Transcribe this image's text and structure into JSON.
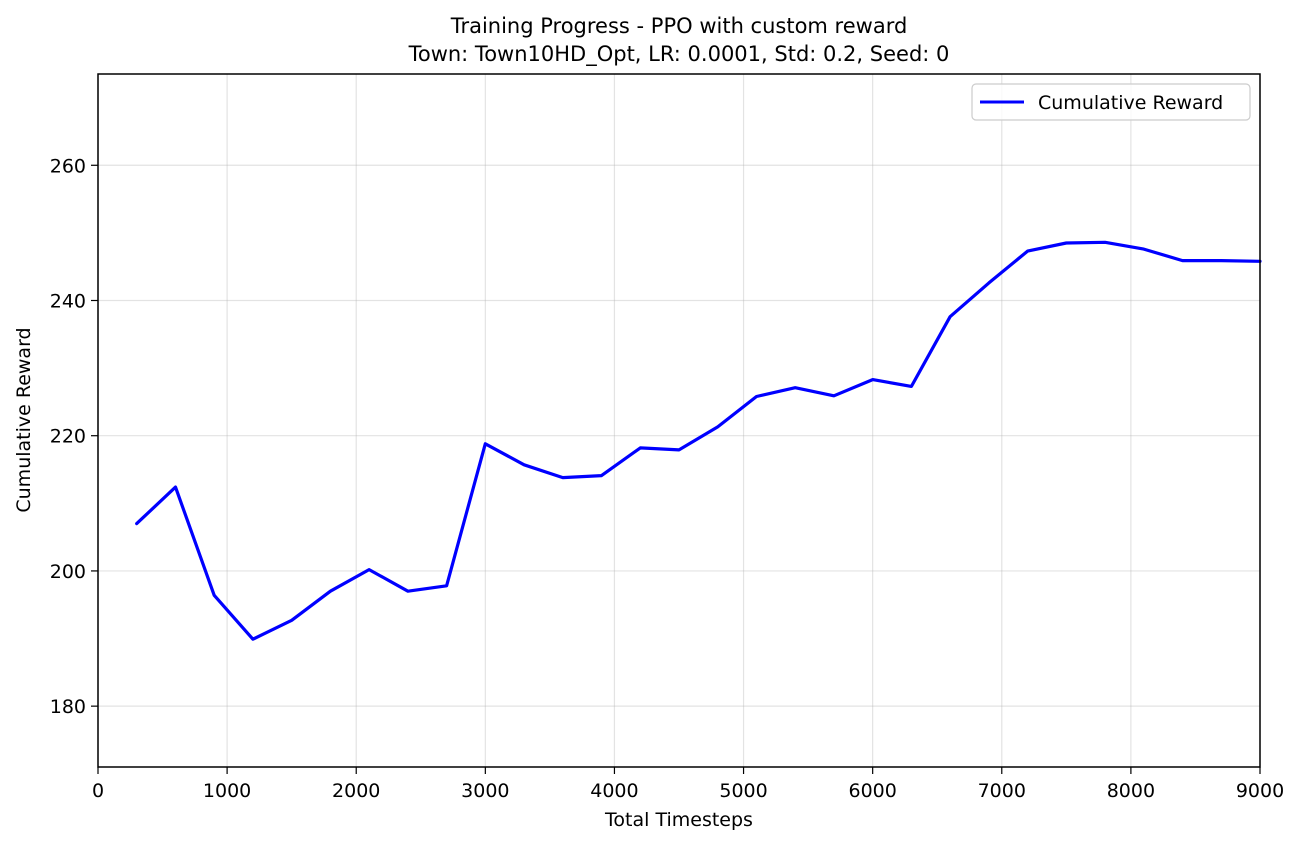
{
  "chart_data": {
    "type": "line",
    "title": "Training Progress - PPO with custom reward",
    "subtitle": "Town: Town10HD_Opt, LR: 0.0001, Std: 0.2, Seed: 0",
    "xlabel": "Total Timesteps",
    "ylabel": "Cumulative Reward",
    "xlim": [
      0,
      9000
    ],
    "ylim": [
      171,
      273.5
    ],
    "xticks": [
      0,
      1000,
      2000,
      3000,
      4000,
      5000,
      6000,
      7000,
      8000,
      9000
    ],
    "yticks": [
      180,
      200,
      220,
      240,
      260
    ],
    "grid": true,
    "legend_position": "top-right",
    "series": [
      {
        "name": "Cumulative Reward",
        "color": "#0000ff",
        "x": [
          300,
          600,
          900,
          1200,
          1500,
          1800,
          2100,
          2400,
          2700,
          3000,
          3300,
          3600,
          3900,
          4200,
          4500,
          4800,
          5100,
          5400,
          5700,
          6000,
          6300,
          6600,
          6900,
          7200,
          7500,
          7800,
          8100,
          8400,
          8700,
          9000
        ],
        "y": [
          207.0,
          212.4,
          196.4,
          189.9,
          192.7,
          197.0,
          200.2,
          197.0,
          197.8,
          218.8,
          215.7,
          213.8,
          214.1,
          218.2,
          217.9,
          221.3,
          225.8,
          227.1,
          225.9,
          228.3,
          227.3,
          237.6,
          242.6,
          247.3,
          248.5,
          248.6,
          247.6,
          245.9,
          245.9,
          245.8
        ]
      }
    ]
  }
}
